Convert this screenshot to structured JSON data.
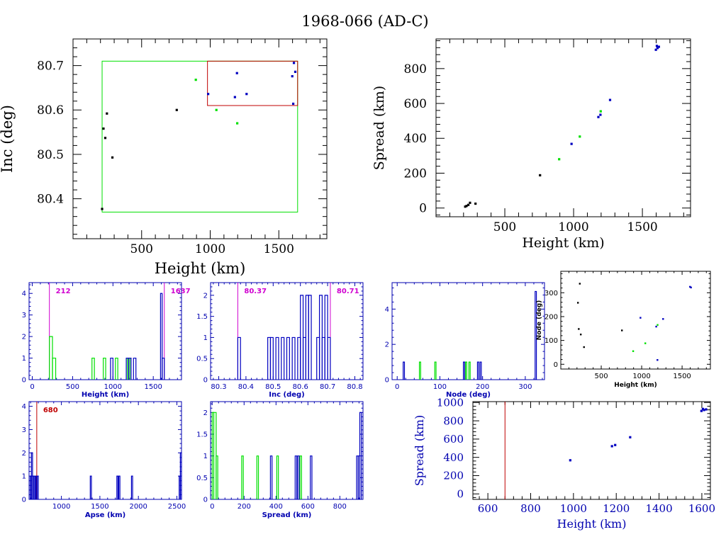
{
  "title": "1968-066 (AD-C)",
  "colors": {
    "axis": "#000000",
    "black": "#000000",
    "green": "#00e000",
    "blue": "#0000c0",
    "red": "#c00000",
    "magenta": "#d000d0",
    "axis_blue": "#0000b0"
  },
  "chart_data": [
    {
      "id": "inc_vs_height",
      "type": "scatter",
      "xlabel": "Height (km)",
      "ylabel": "Inc (deg)",
      "xlim": [
        0,
        1850
      ],
      "ylim": [
        80.31,
        80.76
      ],
      "xticks": [
        500,
        1000,
        1500
      ],
      "yticks": [
        80.4,
        80.5,
        80.6,
        80.7
      ],
      "ytick_labels": [
        "80.4",
        "80.5",
        "80.6",
        "80.7"
      ],
      "boxes": [
        {
          "color": "green",
          "x": [
            212,
            1637
          ],
          "y": [
            80.37,
            80.71
          ]
        },
        {
          "color": "red",
          "x": [
            980,
            1637
          ],
          "y": [
            80.61,
            80.71
          ]
        }
      ],
      "series": [
        {
          "color": "black",
          "points": [
            [
              212,
              80.377
            ],
            [
              222,
              80.558
            ],
            [
              235,
              80.537
            ],
            [
              247,
              80.592
            ],
            [
              287,
              80.493
            ],
            [
              756,
              80.6
            ]
          ]
        },
        {
          "color": "green",
          "points": [
            [
              895,
              80.668
            ],
            [
              1045,
              80.6
            ],
            [
              1197,
              80.57
            ]
          ]
        },
        {
          "color": "blue",
          "points": [
            [
              985,
              80.636
            ],
            [
              1180,
              80.629
            ],
            [
              1195,
              80.683
            ],
            [
              1265,
              80.636
            ],
            [
              1598,
              80.676
            ],
            [
              1605,
              80.614
            ],
            [
              1610,
              80.706
            ],
            [
              1620,
              80.686
            ]
          ]
        }
      ]
    },
    {
      "id": "spread_vs_height",
      "type": "scatter",
      "xlabel": "Height (km)",
      "ylabel": "Spread (km)",
      "xlim": [
        0,
        1850
      ],
      "ylim": [
        -50,
        970
      ],
      "xticks": [
        500,
        1000,
        1500
      ],
      "yticks": [
        0,
        200,
        400,
        600,
        800
      ],
      "series": [
        {
          "color": "black",
          "points": [
            [
              212,
              8
            ],
            [
              222,
              12
            ],
            [
              235,
              18
            ],
            [
              247,
              30
            ],
            [
              287,
              25
            ],
            [
              756,
              188
            ]
          ]
        },
        {
          "color": "green",
          "points": [
            [
              895,
              280
            ],
            [
              1045,
              410
            ],
            [
              1197,
              555
            ]
          ]
        },
        {
          "color": "blue",
          "points": [
            [
              985,
              368
            ],
            [
              1180,
              522
            ],
            [
              1195,
              535
            ],
            [
              1265,
              620
            ],
            [
              1598,
              908
            ],
            [
              1605,
              930
            ],
            [
              1610,
              918
            ],
            [
              1620,
              925
            ]
          ]
        }
      ]
    },
    {
      "id": "height_hist",
      "type": "histogram",
      "xlabel": "Height (km)",
      "xlim": [
        -40,
        1850
      ],
      "ylim": [
        0,
        4.5
      ],
      "xticks": [
        0,
        500,
        1000,
        1500
      ],
      "yticks": [
        0,
        1,
        2,
        3,
        4
      ],
      "markers": [
        {
          "x": 212,
          "label": "212",
          "color": "magenta"
        },
        {
          "x": 1637,
          "label": "1637",
          "color": "magenta"
        }
      ],
      "series": [
        {
          "color": "green",
          "bins": [
            [
              212,
              250,
              2
            ],
            [
              250,
              290,
              1
            ],
            [
              740,
              770,
              1
            ],
            [
              880,
              910,
              1
            ],
            [
              1030,
              1060,
              1
            ],
            [
              1180,
              1210,
              1
            ]
          ]
        },
        {
          "color": "blue",
          "bins": [
            [
              970,
              1000,
              1
            ],
            [
              1165,
              1195,
              1
            ],
            [
              1195,
              1225,
              1
            ],
            [
              1255,
              1285,
              1
            ],
            [
              1590,
              1610,
              4
            ],
            [
              1610,
              1637,
              1
            ]
          ]
        }
      ]
    },
    {
      "id": "inc_hist",
      "type": "histogram",
      "xlabel": "Inc (deg)",
      "xlim": [
        80.27,
        80.83
      ],
      "ylim": [
        0,
        2.3
      ],
      "xticks": [
        80.3,
        80.4,
        80.5,
        80.6,
        80.7,
        80.8
      ],
      "xtick_labels": [
        "80.3",
        "80.4",
        "80.5",
        "80.6",
        "80.7",
        "80.8"
      ],
      "yticks": [
        0,
        0.5,
        1,
        1.5,
        2
      ],
      "markers": [
        {
          "x": 80.37,
          "label": "80.37",
          "color": "magenta"
        },
        {
          "x": 80.71,
          "label": "80.71",
          "color": "magenta"
        }
      ],
      "series": [
        {
          "color": "blue",
          "bins": [
            [
              80.37,
              80.38,
              1
            ],
            [
              80.48,
              80.49,
              1
            ],
            [
              80.49,
              80.5,
              1
            ],
            [
              80.51,
              80.52,
              1
            ],
            [
              80.53,
              80.54,
              1
            ],
            [
              80.55,
              80.56,
              1
            ],
            [
              80.57,
              80.58,
              1
            ],
            [
              80.59,
              80.6,
              1
            ],
            [
              80.6,
              80.61,
              2
            ],
            [
              80.61,
              80.62,
              1
            ],
            [
              80.62,
              80.63,
              2
            ],
            [
              80.63,
              80.64,
              2
            ],
            [
              80.66,
              80.67,
              1
            ],
            [
              80.67,
              80.68,
              2
            ],
            [
              80.68,
              80.69,
              1
            ],
            [
              80.69,
              80.7,
              2
            ],
            [
              80.7,
              80.71,
              1
            ]
          ]
        }
      ]
    },
    {
      "id": "node_hist",
      "type": "histogram",
      "xlabel": "Node (deg)",
      "xlim": [
        -12,
        345
      ],
      "ylim": [
        0,
        5.5
      ],
      "xticks": [
        0,
        100,
        200,
        300
      ],
      "yticks": [
        0,
        2,
        4
      ],
      "series": [
        {
          "color": "green",
          "bins": [
            [
              52,
              55,
              1
            ],
            [
              88,
              91,
              1
            ],
            [
              160,
              163,
              1
            ],
            [
              168,
              171,
              1
            ]
          ]
        },
        {
          "color": "blue",
          "bins": [
            [
              14,
              17,
              1
            ],
            [
              155,
              158,
              1
            ],
            [
              188,
              191,
              1
            ],
            [
              194,
              197,
              1
            ],
            [
              323,
              326,
              5
            ]
          ]
        }
      ]
    },
    {
      "id": "node_vs_height",
      "type": "scatter",
      "xlabel": "Height (km)",
      "ylabel": "Node (deg)",
      "xlim": [
        0,
        1850
      ],
      "ylim": [
        -20,
        390
      ],
      "xticks": [
        500,
        1000,
        1500
      ],
      "yticks": [
        0,
        100,
        200,
        300
      ],
      "series": [
        {
          "color": "black",
          "points": [
            [
              212,
              258
            ],
            [
              222,
              148
            ],
            [
              235,
              338
            ],
            [
              247,
              125
            ],
            [
              287,
              72
            ],
            [
              756,
              142
            ]
          ]
        },
        {
          "color": "green",
          "points": [
            [
              895,
              55
            ],
            [
              1045,
              88
            ],
            [
              1197,
              165
            ]
          ]
        },
        {
          "color": "blue",
          "points": [
            [
              985,
              195
            ],
            [
              1180,
              158
            ],
            [
              1195,
              18
            ],
            [
              1265,
              190
            ],
            [
              1598,
              325
            ],
            [
              1610,
              322
            ]
          ]
        }
      ]
    },
    {
      "id": "apse_hist",
      "type": "histogram",
      "xlabel": "Apse (km)",
      "xlim": [
        580,
        2560
      ],
      "ylim": [
        0,
        4.2
      ],
      "xticks": [
        1000,
        1500,
        2000,
        2500
      ],
      "yticks": [
        0,
        1,
        2,
        3,
        4
      ],
      "markers": [
        {
          "x": 680,
          "label": "680",
          "color": "red"
        }
      ],
      "series": [
        {
          "color": "blue",
          "bins": [
            [
              595,
              610,
              1
            ],
            [
              610,
              625,
              2
            ],
            [
              625,
              640,
              1
            ],
            [
              640,
              655,
              1
            ],
            [
              660,
              672,
              1
            ],
            [
              685,
              700,
              1
            ],
            [
              1375,
              1390,
              1
            ],
            [
              1720,
              1735,
              1
            ],
            [
              1745,
              1760,
              1
            ],
            [
              1910,
              1925,
              1
            ],
            [
              2530,
              2545,
              1
            ],
            [
              2545,
              2560,
              2
            ]
          ]
        }
      ]
    },
    {
      "id": "spread_hist",
      "type": "histogram",
      "xlabel": "Spread (km)",
      "xlim": [
        -10,
        945
      ],
      "ylim": [
        0,
        2.25
      ],
      "xticks": [
        0,
        200,
        400,
        600,
        800
      ],
      "yticks": [
        0,
        0.5,
        1,
        1.5,
        2
      ],
      "series": [
        {
          "color": "green",
          "bins": [
            [
              0,
              10,
              2
            ],
            [
              10,
              25,
              2
            ],
            [
              25,
              35,
              1
            ],
            [
              185,
              195,
              1
            ],
            [
              280,
              290,
              1
            ],
            [
              405,
              415,
              1
            ],
            [
              550,
              560,
              1
            ]
          ]
        },
        {
          "color": "blue",
          "bins": [
            [
              365,
              375,
              1
            ],
            [
              520,
              530,
              1
            ],
            [
              535,
              545,
              1
            ],
            [
              615,
              625,
              1
            ],
            [
              905,
              915,
              1
            ],
            [
              915,
              925,
              1
            ],
            [
              925,
              935,
              2
            ]
          ]
        }
      ]
    },
    {
      "id": "spread_vs_height_zoom",
      "type": "scatter",
      "xlabel": "Height (km)",
      "ylabel": "Spread (km)",
      "xlim": [
        530,
        1640
      ],
      "ylim": [
        -60,
        1010
      ],
      "xticks": [
        600,
        800,
        1000,
        1200,
        1400,
        1600
      ],
      "yticks": [
        0,
        200,
        400,
        600,
        800,
        1000
      ],
      "vline": {
        "x": 680,
        "color": "red"
      },
      "series": [
        {
          "color": "blue",
          "points": [
            [
              985,
              368
            ],
            [
              1180,
              522
            ],
            [
              1195,
              535
            ],
            [
              1265,
              620
            ],
            [
              1598,
              908
            ],
            [
              1605,
              930
            ],
            [
              1610,
              918
            ],
            [
              1620,
              925
            ]
          ]
        }
      ]
    }
  ]
}
